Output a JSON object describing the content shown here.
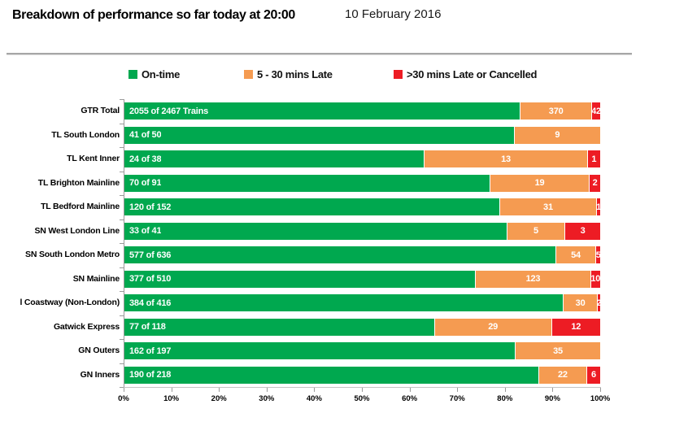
{
  "header": {
    "title": "Breakdown of performance so far today at 20:00",
    "date": "10 February 2016"
  },
  "legend": [
    {
      "label": "On-time",
      "color": "#00A84F"
    },
    {
      "label": "5 - 30 mins Late",
      "color": "#F59B51"
    },
    {
      "label": ">30 mins Late or Cancelled",
      "color": "#ED1C24"
    }
  ],
  "colors": {
    "on_time": "#00A84F",
    "late": "#F59B51",
    "cancelled": "#ED1C24"
  },
  "chart_data": {
    "type": "bar",
    "orientation": "horizontal",
    "stacked": true,
    "normalized": "percent",
    "title": "Breakdown of performance so far today at 20:00",
    "xlabel": "",
    "ylabel": "",
    "xlim": [
      0,
      100
    ],
    "x_ticks": [
      "0%",
      "10%",
      "20%",
      "30%",
      "40%",
      "50%",
      "60%",
      "70%",
      "80%",
      "90%",
      "100%"
    ],
    "legend_position": "top",
    "grid": false,
    "categories": [
      "GTR Total",
      "TL South London",
      "TL Kent Inner",
      "TL Brighton Mainline",
      "TL Bedford Mainline",
      "SN West London Line",
      "SN South London Metro",
      "SN Mainline",
      "l Coastway (Non-London)",
      "Gatwick Express",
      "GN Outers",
      "GN Inners"
    ],
    "totals": [
      2467,
      50,
      38,
      91,
      152,
      41,
      636,
      510,
      416,
      118,
      197,
      218
    ],
    "series": [
      {
        "name": "On-time",
        "color": "#00A84F",
        "values": [
          2055,
          41,
          24,
          70,
          120,
          33,
          577,
          377,
          384,
          77,
          162,
          190
        ]
      },
      {
        "name": "5 - 30 mins Late",
        "color": "#F59B51",
        "values": [
          370,
          9,
          13,
          19,
          31,
          5,
          54,
          123,
          30,
          29,
          35,
          22
        ]
      },
      {
        "name": ">30 mins Late or Cancelled",
        "color": "#ED1C24",
        "values": [
          42,
          0,
          1,
          2,
          1,
          3,
          5,
          10,
          2,
          12,
          0,
          6
        ]
      }
    ],
    "on_time_labels": [
      "2055 of 2467 Trains",
      "41 of 50",
      "24 of 38",
      "70 of 91",
      "120 of 152",
      "33 of 41",
      "577 of 636",
      "377 of 510",
      "384 of 416",
      "77 of 118",
      "162 of 197",
      "190 of 218"
    ]
  }
}
